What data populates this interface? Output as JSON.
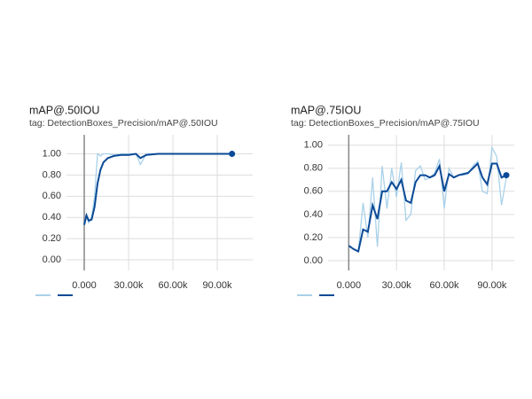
{
  "chart_data": [
    {
      "type": "line",
      "title": "mAP@.50IOU",
      "subtitle": "tag: DetectionBoxes_Precision/mAP@.50IOU",
      "x": [
        0,
        1500,
        3000,
        5000,
        7000,
        9000,
        11000,
        13000,
        16000,
        20000,
        25000,
        30000,
        35000,
        38000,
        42000,
        50000,
        60000,
        70000,
        80000,
        90000,
        100000
      ],
      "series": [
        {
          "color": "#a9d1ea",
          "values": [
            0.33,
            0.43,
            0.35,
            0.4,
            0.6,
            1.0,
            0.98,
            1.0,
            1.0,
            0.99,
            1.0,
            1.0,
            1.0,
            0.9,
            1.0,
            1.0,
            1.0,
            1.0,
            1.0,
            1.0,
            1.0
          ]
        },
        {
          "color": "#0b4a96",
          "values": [
            0.33,
            0.42,
            0.37,
            0.38,
            0.5,
            0.72,
            0.85,
            0.92,
            0.96,
            0.98,
            0.99,
            0.99,
            1.0,
            0.96,
            0.99,
            1.0,
            1.0,
            1.0,
            1.0,
            1.0,
            1.0
          ]
        }
      ],
      "xlim": [
        -12000,
        114000
      ],
      "ylim": [
        -0.1,
        1.18
      ],
      "xticks": [
        {
          "value": 0,
          "label": "0.000"
        },
        {
          "value": 30000,
          "label": "30.00k"
        },
        {
          "value": 60000,
          "label": "60.00k"
        },
        {
          "value": 90000,
          "label": "90.00k"
        }
      ],
      "yticks": [
        {
          "value": 0,
          "label": "0.00"
        },
        {
          "value": 0.2,
          "label": "0.20"
        },
        {
          "value": 0.4,
          "label": "0.40"
        },
        {
          "value": 0.6,
          "label": "0.60"
        },
        {
          "value": 0.8,
          "label": "0.80"
        },
        {
          "value": 1,
          "label": "1.00"
        }
      ],
      "grid": true
    },
    {
      "type": "line",
      "title": "mAP@.75IOU",
      "subtitle": "tag: DetectionBoxes_Precision/mAP@.75IOU",
      "x": [
        0,
        3000,
        6000,
        9000,
        12000,
        15000,
        18000,
        21000,
        24000,
        27000,
        30000,
        33000,
        36000,
        39000,
        42000,
        45000,
        48000,
        51000,
        54000,
        57000,
        60000,
        63000,
        66000,
        69000,
        72000,
        75000,
        78000,
        81000,
        84000,
        87000,
        90000,
        93000,
        96000,
        99000
      ],
      "series": [
        {
          "color": "#a9d1ea",
          "values": [
            0.13,
            0.1,
            0.08,
            0.5,
            0.2,
            0.72,
            0.12,
            0.82,
            0.45,
            0.8,
            0.55,
            0.85,
            0.35,
            0.4,
            0.78,
            0.82,
            0.7,
            0.72,
            0.76,
            0.88,
            0.45,
            0.8,
            0.72,
            0.74,
            0.74,
            0.75,
            0.82,
            0.86,
            0.6,
            0.58,
            0.98,
            0.9,
            0.48,
            0.72
          ]
        },
        {
          "color": "#0b4a96",
          "values": [
            0.13,
            0.1,
            0.08,
            0.27,
            0.25,
            0.48,
            0.36,
            0.6,
            0.6,
            0.68,
            0.62,
            0.7,
            0.52,
            0.5,
            0.68,
            0.74,
            0.74,
            0.72,
            0.74,
            0.82,
            0.6,
            0.75,
            0.72,
            0.74,
            0.75,
            0.76,
            0.8,
            0.84,
            0.72,
            0.66,
            0.84,
            0.84,
            0.72,
            0.74
          ]
        }
      ],
      "xlim": [
        -13000,
        104000
      ],
      "ylim": [
        -0.085,
        1.09
      ],
      "xticks": [
        {
          "value": 0,
          "label": "0.000"
        },
        {
          "value": 30000,
          "label": "30.00k"
        },
        {
          "value": 60000,
          "label": "60.00k"
        },
        {
          "value": 90000,
          "label": "90.00k"
        }
      ],
      "yticks": [
        {
          "value": 0,
          "label": "0.00"
        },
        {
          "value": 0.2,
          "label": "0.20"
        },
        {
          "value": 0.4,
          "label": "0.40"
        },
        {
          "value": 0.6,
          "label": "0.60"
        },
        {
          "value": 0.8,
          "label": "0.80"
        },
        {
          "value": 1,
          "label": "1.00"
        }
      ],
      "grid": true
    }
  ]
}
